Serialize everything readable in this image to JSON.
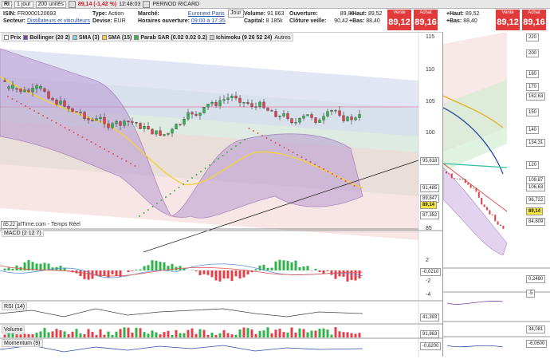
{
  "toolbar": {
    "symbol": "RI",
    "timeframe": "1 jour",
    "units": "200 unités",
    "quote": "89,14 (-1,42 %)",
    "time": "12:48:03",
    "name": "PERNOD RICARD"
  },
  "info": {
    "isin_label": "ISIN:",
    "isin": "FR0000120693",
    "sector_label": "Secteur:",
    "sector": "Distillateurs et viticulteurs",
    "type_label": "Type:",
    "type": "Action",
    "currency_label": "Devise:",
    "currency": "EUR",
    "market_label": "Marché:",
    "market": "Euronext Paris",
    "hours_label": "Horaires ouverture:",
    "hours": "09:00 à 17:35",
    "period": "Jour",
    "volume_label": "Volume:",
    "volume": "91 863",
    "cap_label": "Capital:",
    "cap": "8 185k",
    "open_label": "Ouverture:",
    "open": "89,00",
    "prevclose_label": "Clôture veille:",
    "prevclose": "90,42",
    "high_label": "+Haut:",
    "high": "89,52",
    "low_label": "+Bas:",
    "low": "88,40",
    "sell_label": "Vente",
    "sell": "89,12",
    "buy_label": "Achat",
    "buy": "89,16"
  },
  "side_info": {
    "high_label": "+Haut:",
    "high": "89,52",
    "low_label": "+Bas:",
    "low": "88,40",
    "sell_label": "Vente",
    "sell": "89,12",
    "buy_label": "Achat",
    "buy": "89,16"
  },
  "legend": {
    "price": "Prix",
    "bollinger": "Bollinger (20 2)",
    "sma3": "SMA (3)",
    "sma15": "SMA (15)",
    "sar": "Parab SAR (0.02 0.02 0.2)",
    "ichimoku": "Ichimoku (9 26 52 24)",
    "autres": "Autres"
  },
  "source": "ProRealTime.com - Temps Réel",
  "panels": {
    "macd": "MACD (2 12 7)",
    "rsi": "RSI (14)",
    "volume": "Volume",
    "momentum": "Momentum (9)"
  },
  "price_axis": [
    "115",
    "110",
    "105",
    "100",
    "95,618",
    "91,485",
    "89,847",
    "89,14",
    "87,352",
    "85"
  ],
  "price_level": "85,22",
  "macd_axis": [
    "2",
    "-0,0210",
    "-2",
    "-4"
  ],
  "rsi_axis": [
    "41,393"
  ],
  "vol_axis": [
    "91,863"
  ],
  "mom_axis": [
    "-0,6200"
  ],
  "side_axis": [
    "220",
    "200",
    "180",
    "170",
    "162,63",
    "150",
    "140",
    "134,31",
    "120",
    "109,87",
    "106,63",
    "96,722",
    "89,14",
    "84,809"
  ],
  "side_sub": [
    "0,2480",
    "-5",
    "34,081",
    "-6,0600"
  ],
  "colors": {
    "up": "#2fb34a",
    "down": "#e0404a",
    "bollinger": "#7b3fa0",
    "sma3": "#7fd3f0",
    "sma15": "#f2d23a",
    "sar_up": "#3cb24a",
    "sar_down": "#e05050"
  }
}
